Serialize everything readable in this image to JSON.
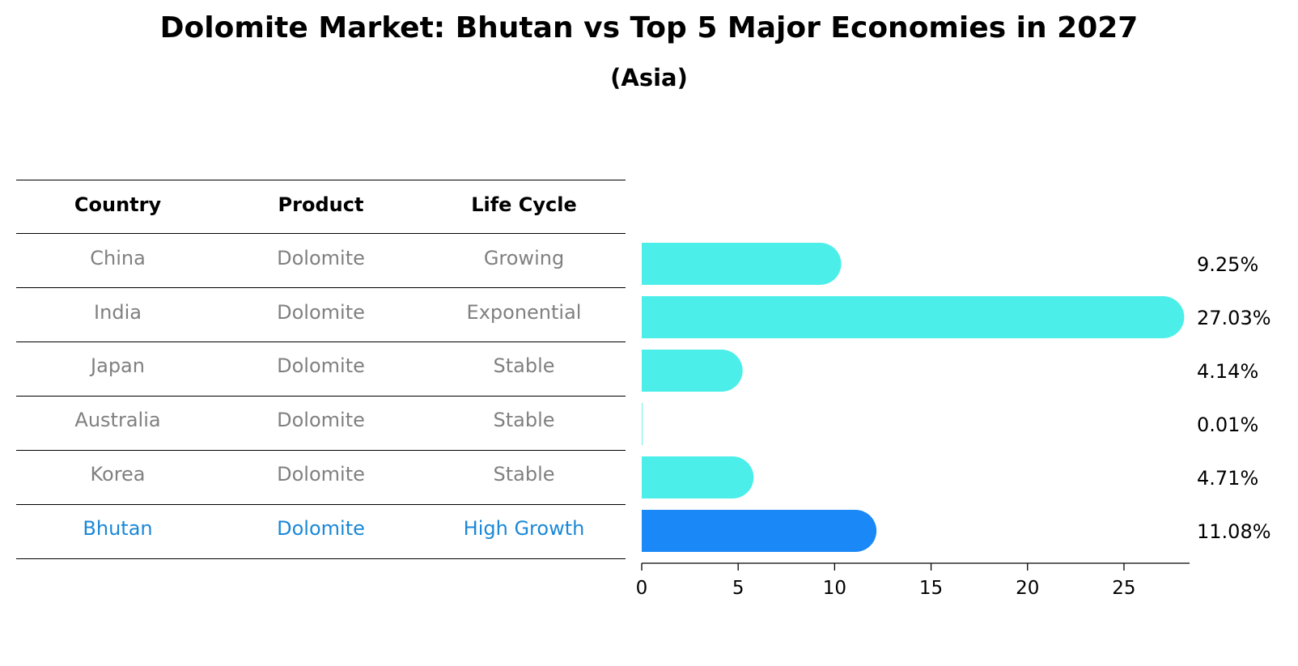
{
  "title": "Dolomite Market: Bhutan vs Top 5 Major Economies in 2027",
  "subtitle": "(Asia)",
  "table": {
    "headers": [
      "Country",
      "Product",
      "Life Cycle"
    ],
    "rows": [
      {
        "country": "China",
        "product": "Dolomite",
        "life_cycle": "Growing"
      },
      {
        "country": "India",
        "product": "Dolomite",
        "life_cycle": "Exponential"
      },
      {
        "country": "Japan",
        "product": "Dolomite",
        "life_cycle": "Stable"
      },
      {
        "country": "Australia",
        "product": "Dolomite",
        "life_cycle": "Stable"
      },
      {
        "country": "Korea",
        "product": "Dolomite",
        "life_cycle": "Stable"
      },
      {
        "country": "Bhutan",
        "product": "Dolomite",
        "life_cycle": "High Growth"
      }
    ]
  },
  "colors": {
    "bar": "#4beee8",
    "highlight": "#1a88f7",
    "highlight_text": "#1a88d7",
    "muted_text": "#808080"
  },
  "chart_data": {
    "type": "bar",
    "orientation": "horizontal",
    "categories": [
      "China",
      "India",
      "Japan",
      "Australia",
      "Korea",
      "Bhutan"
    ],
    "values": [
      9.25,
      27.03,
      4.14,
      0.01,
      4.71,
      11.08
    ],
    "value_labels": [
      "9.25%",
      "27.03%",
      "4.14%",
      "0.01%",
      "4.71%",
      "11.08%"
    ],
    "highlight_category": "Bhutan",
    "xlim": [
      0,
      28.4
    ],
    "xticks": [
      0,
      5,
      10,
      15,
      20,
      25
    ],
    "xtick_labels": [
      "0",
      "5",
      "10",
      "15",
      "20",
      "25"
    ],
    "grid": false,
    "xlabel": "",
    "ylabel": ""
  }
}
